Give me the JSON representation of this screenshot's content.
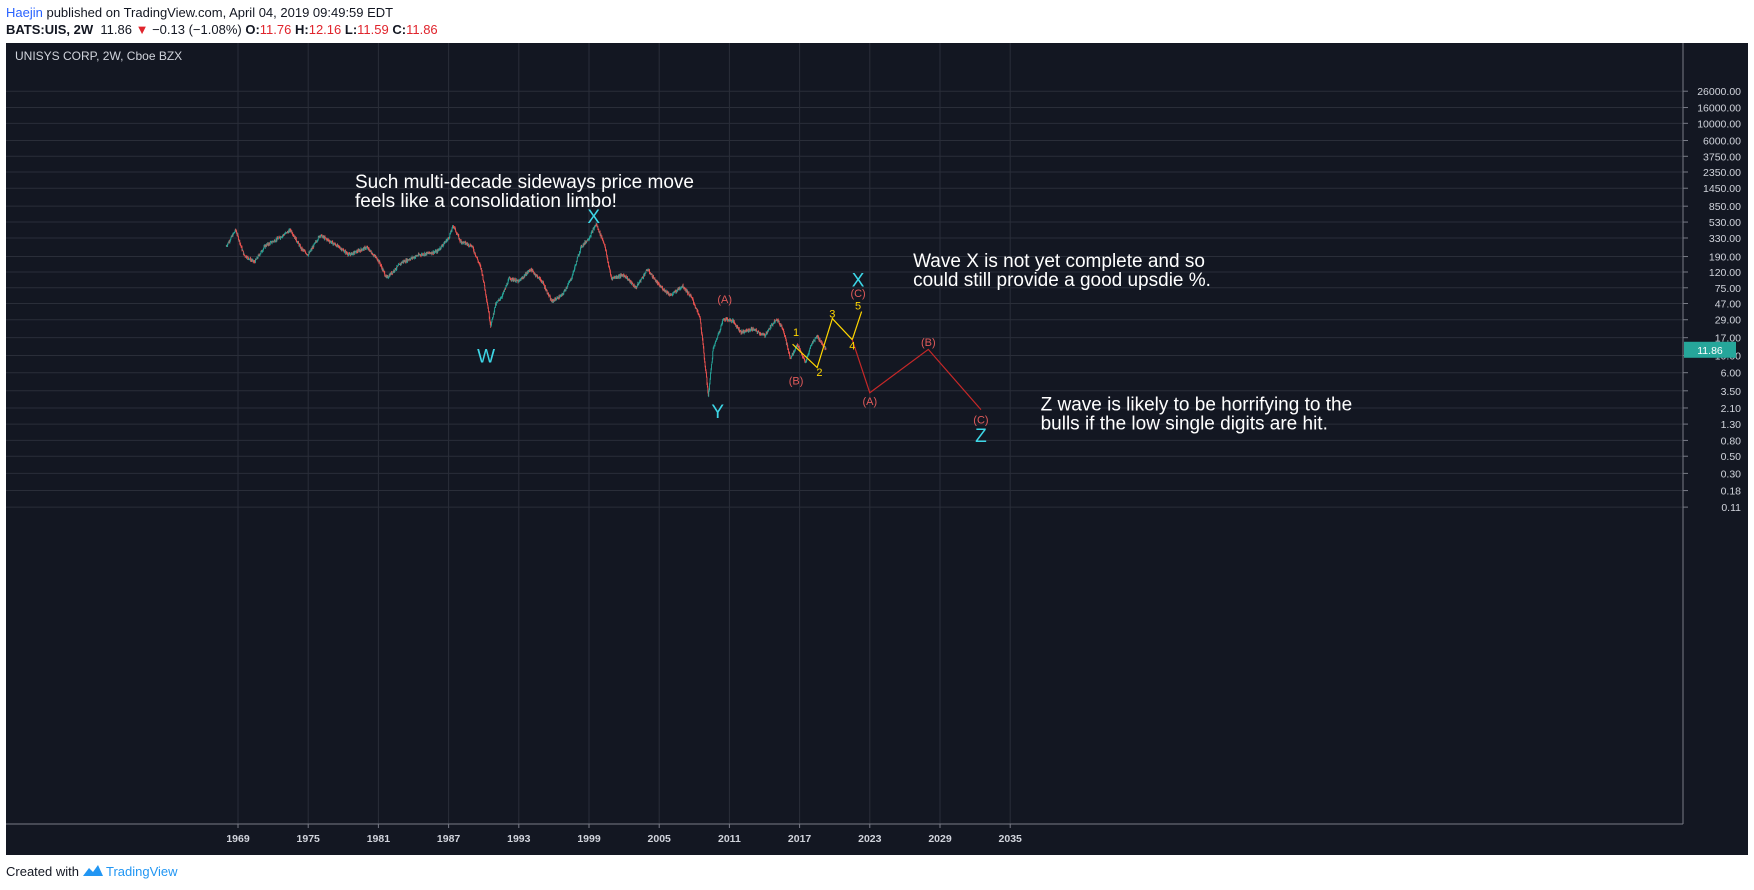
{
  "header": {
    "author": "Haejin",
    "published_text": " published on TradingView.com, April 04, 2019 09:49:59 EDT",
    "symbol": "BATS:UIS, 2W",
    "price": "11.86",
    "change": "−0.13 (−1.08%)",
    "o_label": "O:",
    "o_value": "11.76",
    "h_label": "H:",
    "h_value": "12.16",
    "l_label": "L:",
    "l_value": "11.59",
    "c_label": "C:",
    "c_value": "11.86"
  },
  "footer": {
    "created_with": "Created with",
    "brand": "TradingView"
  },
  "chart_data": {
    "type": "candlestick",
    "title": "UNISYS CORP, 2W, Cboe BZX",
    "y_scale": "log",
    "y_ticks": [
      26000,
      16000,
      10000,
      6000,
      3750,
      2350,
      1450,
      850,
      530,
      330,
      190,
      120,
      75,
      47,
      29,
      17,
      10,
      6,
      3.5,
      2.1,
      1.3,
      0.8,
      0.5,
      0.3,
      0.18,
      0.11
    ],
    "y_tick_labels": [
      "26000.00",
      "16000.00",
      "10000.00",
      "6000.00",
      "3750.00",
      "2350.00",
      "1450.00",
      "850.00",
      "530.00",
      "330.00",
      "190.00",
      "120.00",
      "75.00",
      "47.00",
      "29.00",
      "17.00",
      "10.00",
      "6.00",
      "3.50",
      "2.10",
      "1.30",
      "0.80",
      "0.50",
      "0.30",
      "0.18",
      "0.11"
    ],
    "x_ticks": [
      1969,
      1975,
      1981,
      1987,
      1993,
      1999,
      2005,
      2011,
      2017,
      2023,
      2029,
      2035
    ],
    "x_tick_labels": [
      "1969",
      "1975",
      "1981",
      "1987",
      "1993",
      "1999",
      "2005",
      "2011",
      "2017",
      "2023",
      "2029",
      "2035"
    ],
    "last_price": 11.86,
    "last_price_label": "11.86",
    "price_path": [
      [
        1968.0,
        260
      ],
      [
        1968.8,
        420
      ],
      [
        1969.5,
        200
      ],
      [
        1970.4,
        160
      ],
      [
        1971.3,
        260
      ],
      [
        1972.5,
        330
      ],
      [
        1973.5,
        420
      ],
      [
        1974.4,
        240
      ],
      [
        1975.0,
        200
      ],
      [
        1976.0,
        360
      ],
      [
        1977.5,
        260
      ],
      [
        1978.5,
        200
      ],
      [
        1980.0,
        250
      ],
      [
        1981.0,
        170
      ],
      [
        1981.7,
        100
      ],
      [
        1983.0,
        160
      ],
      [
        1984.5,
        200
      ],
      [
        1986.0,
        220
      ],
      [
        1987.0,
        330
      ],
      [
        1987.4,
        480
      ],
      [
        1988.0,
        300
      ],
      [
        1989.0,
        260
      ],
      [
        1989.8,
        130
      ],
      [
        1990.2,
        60
      ],
      [
        1990.6,
        24
      ],
      [
        1991.0,
        45
      ],
      [
        1991.6,
        60
      ],
      [
        1992.2,
        100
      ],
      [
        1993.0,
        90
      ],
      [
        1994.0,
        130
      ],
      [
        1995.0,
        90
      ],
      [
        1995.8,
        50
      ],
      [
        1996.7,
        60
      ],
      [
        1997.5,
        100
      ],
      [
        1998.3,
        250
      ],
      [
        1999.0,
        330
      ],
      [
        1999.6,
        500
      ],
      [
        2000.3,
        280
      ],
      [
        2000.9,
        100
      ],
      [
        2002.0,
        110
      ],
      [
        2003.0,
        75
      ],
      [
        2004.0,
        130
      ],
      [
        2005.0,
        80
      ],
      [
        2006.0,
        60
      ],
      [
        2007.0,
        80
      ],
      [
        2007.8,
        55
      ],
      [
        2008.5,
        30
      ],
      [
        2009.2,
        3
      ],
      [
        2009.6,
        12
      ],
      [
        2010.5,
        30
      ],
      [
        2011.3,
        28
      ],
      [
        2012.0,
        20
      ],
      [
        2013.0,
        22
      ],
      [
        2014.0,
        18
      ],
      [
        2015.0,
        30
      ],
      [
        2015.6,
        22
      ],
      [
        2016.2,
        9
      ],
      [
        2016.8,
        14
      ],
      [
        2017.5,
        8
      ],
      [
        2018.0,
        14
      ],
      [
        2018.5,
        18
      ],
      [
        2019.25,
        11.86
      ]
    ],
    "waves": [
      {
        "name": "yellow",
        "color": "#ffd600",
        "points": [
          [
            2016.4,
            14
          ],
          [
            2018.5,
            7
          ],
          [
            2019.8,
            30
          ],
          [
            2021.5,
            16
          ],
          [
            2022.3,
            37
          ]
        ]
      },
      {
        "name": "red",
        "color": "#c62828",
        "points": [
          [
            2021.5,
            16
          ],
          [
            2023.0,
            3.3
          ],
          [
            2028.0,
            12
          ],
          [
            2032.5,
            2.0
          ]
        ]
      }
    ],
    "wave_labels": [
      {
        "text": "W",
        "x": 1990.2,
        "y": 9.5,
        "color": "#3dd6e6",
        "size": 19
      },
      {
        "text": "X",
        "x": 1999.4,
        "y": 600,
        "color": "#3dd6e6",
        "size": 19
      },
      {
        "text": "Y",
        "x": 2010.0,
        "y": 1.8,
        "color": "#3dd6e6",
        "size": 19
      },
      {
        "text": "X",
        "x": 2022.0,
        "y": 90,
        "color": "#3dd6e6",
        "size": 19
      },
      {
        "text": "Z",
        "x": 2032.5,
        "y": 0.88,
        "color": "#3dd6e6",
        "size": 19
      },
      {
        "text": "(A)",
        "x": 2010.6,
        "y": 52,
        "color": "#e05a5a",
        "size": 11
      },
      {
        "text": "(B)",
        "x": 2016.7,
        "y": 4.6,
        "color": "#e05a5a",
        "size": 11
      },
      {
        "text": "(C)",
        "x": 2022.0,
        "y": 62,
        "color": "#e05a5a",
        "size": 11
      },
      {
        "text": "(A)",
        "x": 2023.0,
        "y": 2.5,
        "color": "#e05a5a",
        "size": 11
      },
      {
        "text": "(B)",
        "x": 2028.0,
        "y": 14.5,
        "color": "#e05a5a",
        "size": 11
      },
      {
        "text": "(C)",
        "x": 2032.5,
        "y": 1.45,
        "color": "#e05a5a",
        "size": 11
      },
      {
        "text": "1",
        "x": 2016.7,
        "y": 19.5,
        "color": "#ffd600",
        "size": 11
      },
      {
        "text": "2",
        "x": 2018.7,
        "y": 5.9,
        "color": "#ffd600",
        "size": 11
      },
      {
        "text": "3",
        "x": 2019.8,
        "y": 34,
        "color": "#ffd600",
        "size": 11
      },
      {
        "text": "4",
        "x": 2021.5,
        "y": 13,
        "color": "#ffd600",
        "size": 11
      },
      {
        "text": "5",
        "x": 2022.0,
        "y": 43,
        "color": "#ffd600",
        "size": 11
      }
    ],
    "annotations": [
      {
        "lines": [
          "Such multi-decade sideways price move",
          "feels like a consolidation limbo!"
        ],
        "x": 1979.0,
        "y": 1450
      },
      {
        "lines": [
          "Wave X is not yet complete and so",
          "could still provide a good upsdie %."
        ],
        "x": 2026.7,
        "y": 140
      },
      {
        "lines": [
          "Z wave is likely to be horrifying to the",
          "bulls if the low single digits are hit."
        ],
        "x": 2037.6,
        "y": 1.95
      }
    ],
    "colors": {
      "background": "#131722",
      "grid": "#2a2e39",
      "up": "#26a69a",
      "down": "#ef5350",
      "text": "#d1d4dc",
      "annotation": "#ffffff",
      "price_tag": "#26a69a"
    }
  }
}
